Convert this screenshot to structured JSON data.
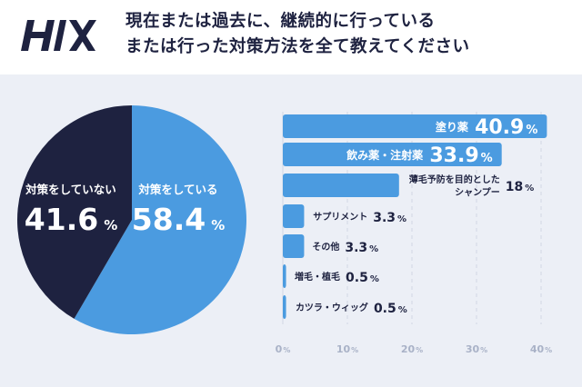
{
  "brand": {
    "logo_text": "H/X"
  },
  "title": {
    "line1": "現在または過去に、継続的に行っている",
    "line2": "または行った対策方法を全て教えてください"
  },
  "colors": {
    "navy": "#1e2240",
    "blue": "#4b9be0",
    "background": "#eceff6",
    "grid": "#d2d7e4",
    "tick": "#a9b2c7"
  },
  "chart_data": [
    {
      "type": "pie",
      "slices": [
        {
          "label": "対策をしている",
          "value": 58.4,
          "unit": "%"
        },
        {
          "label": "対策をしていない",
          "value": 41.6,
          "unit": "%"
        }
      ]
    },
    {
      "type": "bar",
      "orientation": "horizontal",
      "categories": [
        "塗り薬",
        "飲み薬・注射薬",
        "薄毛予防を目的とした シャンプー",
        "サプリメント",
        "その他",
        "増毛・植毛",
        "カツラ・ウィッグ"
      ],
      "category_lines": [
        [
          "塗り薬"
        ],
        [
          "飲み薬・注射薬"
        ],
        [
          "薄毛予防を目的とした",
          "シャンプー"
        ],
        [
          "サプリメント"
        ],
        [
          "その他"
        ],
        [
          "増毛・植毛"
        ],
        [
          "カツラ・ウィッグ"
        ]
      ],
      "values": [
        40.9,
        33.9,
        18,
        3.3,
        3.3,
        0.5,
        0.5
      ],
      "value_labels": [
        "40.9",
        "33.9",
        "18",
        "3.3",
        "3.3",
        "0.5",
        "0.5"
      ],
      "unit": "%",
      "xlim": [
        0,
        40
      ],
      "xticks": [
        0,
        10,
        20,
        30,
        40
      ],
      "tick_unit": "%",
      "grid": true
    }
  ]
}
